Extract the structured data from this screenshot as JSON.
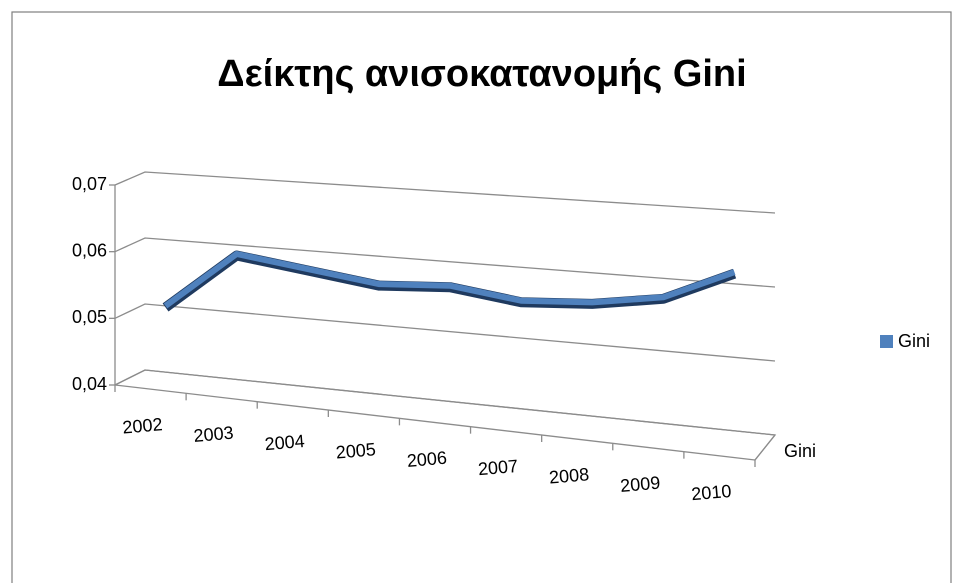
{
  "chart_data": {
    "type": "line3d",
    "title": "Δείκτης ανισοκατανομής Gini",
    "categories": [
      "2002",
      "2003",
      "2004",
      "2005",
      "2006",
      "2007",
      "2008",
      "2009",
      "2010"
    ],
    "series": [
      {
        "name": "Gini",
        "color": "#4f81bd",
        "values": [
          0.051,
          0.06,
          0.059,
          0.058,
          0.059,
          0.058,
          0.059,
          0.061,
          0.066
        ]
      }
    ],
    "ylim": [
      0.04,
      0.07
    ],
    "yticks": [
      {
        "value": 0.04,
        "label": "0,04"
      },
      {
        "value": 0.05,
        "label": "0,05"
      },
      {
        "value": 0.06,
        "label": "0,06"
      },
      {
        "value": 0.07,
        "label": "0,07"
      }
    ],
    "grid": true,
    "legend": "right"
  }
}
